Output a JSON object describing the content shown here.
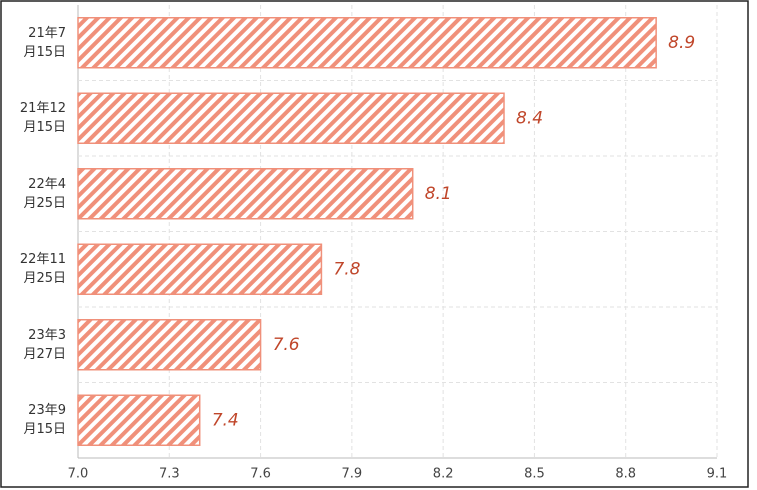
{
  "chart_data": {
    "type": "barh",
    "categories": [
      "21年7\n月15日",
      "21年12\n月15日",
      "22年4\n月25日",
      "22年11\n月25日",
      "23年3\n月27日",
      "23年9\n月15日"
    ],
    "values": [
      8.9,
      8.4,
      8.1,
      7.8,
      7.6,
      7.4
    ],
    "color": "#f0907a",
    "xlim": [
      7.0,
      9.1
    ],
    "xticks": [
      {
        "value": 7.0,
        "label": "7.0"
      },
      7.3,
      7.6,
      7.9,
      8.2,
      8.5,
      8.8,
      9.1
    ],
    "grid": true
  }
}
